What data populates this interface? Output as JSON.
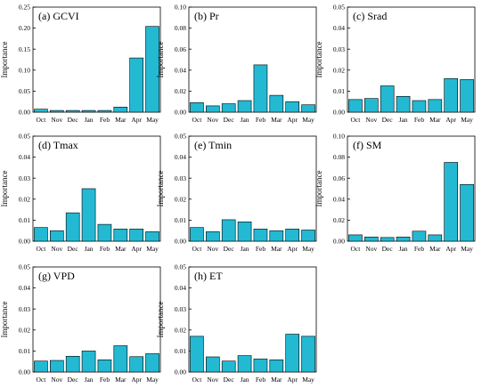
{
  "chart_data": [
    {
      "type": "bar",
      "title": "(a) GCVI",
      "ylabel": "Importance",
      "categories": [
        "Oct",
        "Nov",
        "Dec",
        "Jan",
        "Feb",
        "Mar",
        "Apr",
        "May"
      ],
      "values": [
        0.007,
        0.004,
        0.004,
        0.004,
        0.004,
        0.012,
        0.129,
        0.204
      ],
      "ylim": [
        0,
        0.25
      ],
      "yticks": [
        0.0,
        0.05,
        0.1,
        0.15,
        0.2,
        0.25
      ],
      "ytick_labels": [
        "0.00",
        "0.05",
        "0.10",
        "0.15",
        "0.20",
        "0.25"
      ],
      "bar_color": "#23B9D3"
    },
    {
      "type": "bar",
      "title": "(b) Pr",
      "ylabel": "Importance",
      "categories": [
        "Oct",
        "Nov",
        "Dec",
        "Jan",
        "Feb",
        "Mar",
        "Apr",
        "May"
      ],
      "values": [
        0.009,
        0.006,
        0.008,
        0.011,
        0.045,
        0.016,
        0.01,
        0.007
      ],
      "ylim": [
        0,
        0.1
      ],
      "yticks": [
        0.0,
        0.02,
        0.04,
        0.06,
        0.08,
        0.1
      ],
      "ytick_labels": [
        "0.00",
        "0.02",
        "0.04",
        "0.06",
        "0.08",
        "0.10"
      ],
      "bar_color": "#23B9D3"
    },
    {
      "type": "bar",
      "title": "(c) Srad",
      "ylabel": "Importance",
      "categories": [
        "Oct",
        "Nov",
        "Dec",
        "Jan",
        "Feb",
        "Mar",
        "Apr",
        "May"
      ],
      "values": [
        0.006,
        0.0065,
        0.0125,
        0.0075,
        0.0055,
        0.006,
        0.016,
        0.0155
      ],
      "ylim": [
        0,
        0.05
      ],
      "yticks": [
        0.0,
        0.01,
        0.02,
        0.03,
        0.04,
        0.05
      ],
      "ytick_labels": [
        "0.00",
        "0.01",
        "0.02",
        "0.03",
        "0.04",
        "0.05"
      ],
      "bar_color": "#23B9D3"
    },
    {
      "type": "bar",
      "title": "(d) Tmax",
      "ylabel": "Importance",
      "categories": [
        "Oct",
        "Nov",
        "Dec",
        "Jan",
        "Feb",
        "Mar",
        "Apr",
        "May"
      ],
      "values": [
        0.0065,
        0.005,
        0.0135,
        0.025,
        0.008,
        0.0058,
        0.0058,
        0.0045
      ],
      "ylim": [
        0,
        0.05
      ],
      "yticks": [
        0.0,
        0.01,
        0.02,
        0.03,
        0.04,
        0.05
      ],
      "ytick_labels": [
        "0.00",
        "0.01",
        "0.02",
        "0.03",
        "0.04",
        "0.05"
      ],
      "bar_color": "#23B9D3"
    },
    {
      "type": "bar",
      "title": "(e) Tmin",
      "ylabel": "Importance",
      "categories": [
        "Oct",
        "Nov",
        "Dec",
        "Jan",
        "Feb",
        "Mar",
        "Apr",
        "May"
      ],
      "values": [
        0.0065,
        0.0045,
        0.0102,
        0.0092,
        0.0058,
        0.005,
        0.0058,
        0.0053
      ],
      "ylim": [
        0,
        0.05
      ],
      "yticks": [
        0.0,
        0.01,
        0.02,
        0.03,
        0.04,
        0.05
      ],
      "ytick_labels": [
        "0.00",
        "0.01",
        "0.02",
        "0.03",
        "0.04",
        "0.05"
      ],
      "bar_color": "#23B9D3"
    },
    {
      "type": "bar",
      "title": "(f) SM",
      "ylabel": "Importance",
      "categories": [
        "Oct",
        "Nov",
        "Dec",
        "Jan",
        "Feb",
        "Mar",
        "Apr",
        "May"
      ],
      "values": [
        0.006,
        0.004,
        0.0035,
        0.004,
        0.0095,
        0.006,
        0.075,
        0.054
      ],
      "ylim": [
        0,
        0.1
      ],
      "yticks": [
        0.0,
        0.02,
        0.04,
        0.06,
        0.08,
        0.1
      ],
      "ytick_labels": [
        "0.00",
        "0.02",
        "0.04",
        "0.06",
        "0.08",
        "0.10"
      ],
      "bar_color": "#23B9D3"
    },
    {
      "type": "bar",
      "title": "(g) VPD",
      "ylabel": "Importance",
      "categories": [
        "Oct",
        "Nov",
        "Dec",
        "Jan",
        "Feb",
        "Mar",
        "Apr",
        "May"
      ],
      "values": [
        0.0052,
        0.0055,
        0.0075,
        0.01,
        0.0058,
        0.0125,
        0.0073,
        0.0087
      ],
      "ylim": [
        0,
        0.05
      ],
      "yticks": [
        0.0,
        0.01,
        0.02,
        0.03,
        0.04,
        0.05
      ],
      "ytick_labels": [
        "0.00",
        "0.01",
        "0.02",
        "0.03",
        "0.04",
        "0.05"
      ],
      "bar_color": "#23B9D3"
    },
    {
      "type": "bar",
      "title": "(h) ET",
      "ylabel": "Importance",
      "categories": [
        "Oct",
        "Nov",
        "Dec",
        "Jan",
        "Feb",
        "Mar",
        "Apr",
        "May"
      ],
      "values": [
        0.017,
        0.0072,
        0.0052,
        0.0078,
        0.0062,
        0.0058,
        0.018,
        0.017
      ],
      "ylim": [
        0,
        0.05
      ],
      "yticks": [
        0.0,
        0.01,
        0.02,
        0.03,
        0.04,
        0.05
      ],
      "ytick_labels": [
        "0.00",
        "0.01",
        "0.02",
        "0.03",
        "0.04",
        "0.05"
      ],
      "bar_color": "#23B9D3"
    }
  ]
}
